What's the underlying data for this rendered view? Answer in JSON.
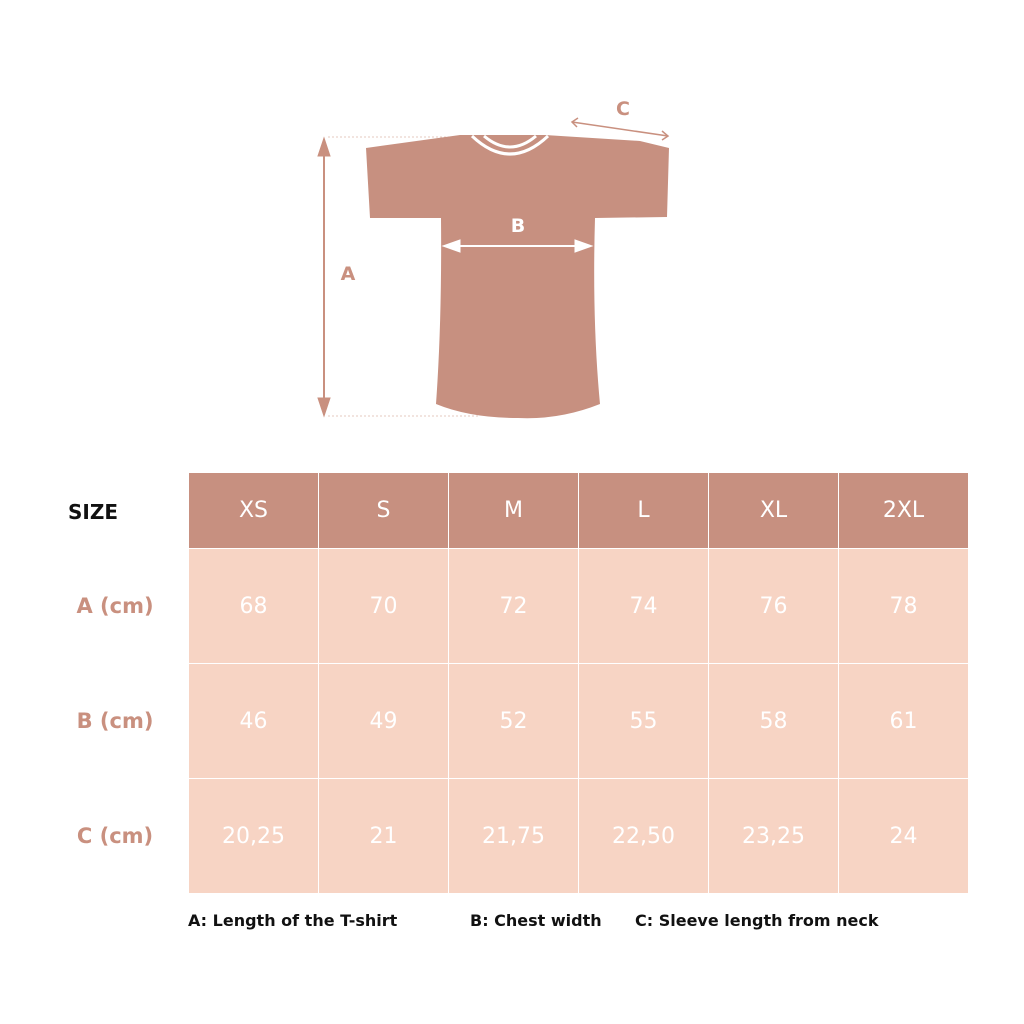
{
  "diagram": {
    "labels": {
      "a": "A",
      "b": "B",
      "c": "C"
    }
  },
  "table": {
    "size_label": "SIZE",
    "sizes": [
      "XS",
      "S",
      "M",
      "L",
      "XL",
      "2XL"
    ],
    "rows": [
      {
        "label": "A (cm)",
        "values": [
          "68",
          "70",
          "72",
          "74",
          "76",
          "78"
        ]
      },
      {
        "label": "B (cm)",
        "values": [
          "46",
          "49",
          "52",
          "55",
          "58",
          "61"
        ]
      },
      {
        "label": "C (cm)",
        "values": [
          "20,25",
          "21",
          "21,75",
          "22,50",
          "23,25",
          "24"
        ]
      }
    ]
  },
  "legend": {
    "a": "A: Length of the T-shirt",
    "b": "B: Chest width",
    "c": "C: Sleeve length from neck"
  },
  "colors": {
    "header": "#c79080",
    "cell": "#f7d4c4",
    "label": "#c9907f"
  }
}
